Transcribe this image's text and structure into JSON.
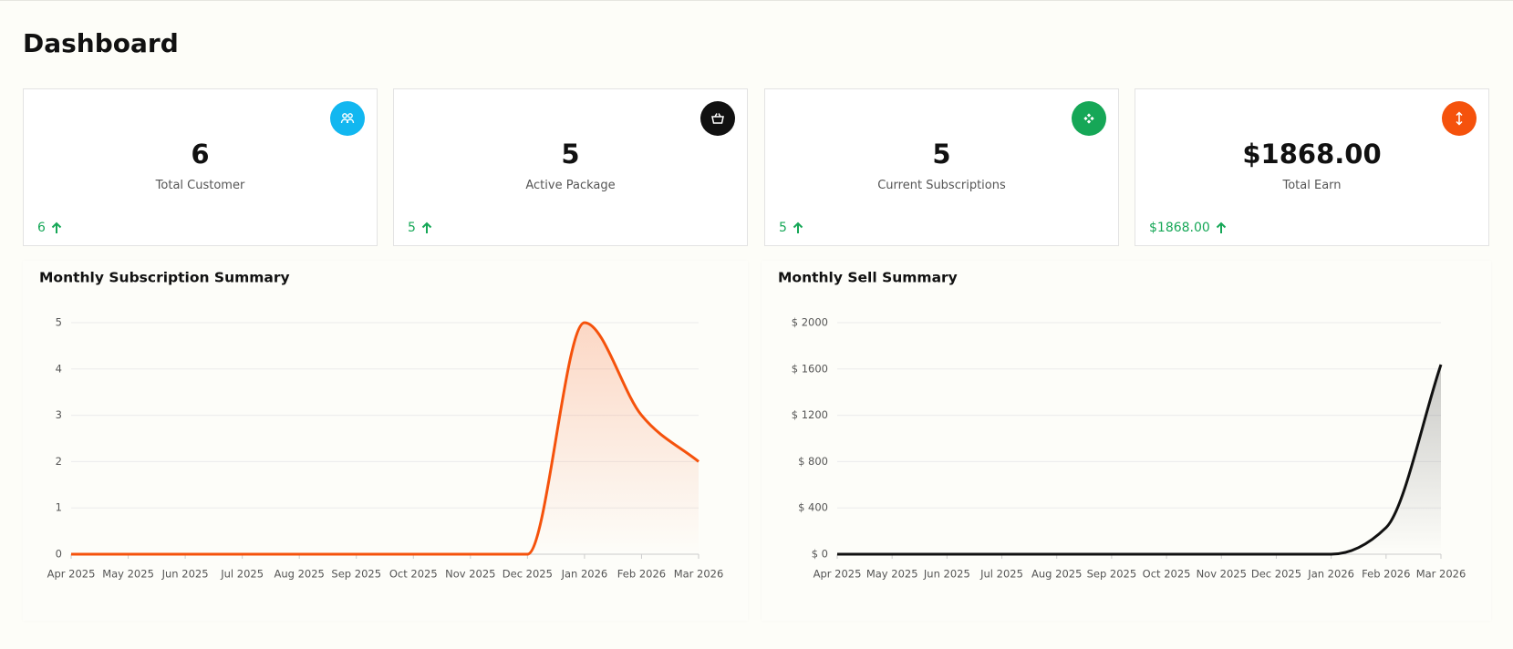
{
  "header": {
    "title": "Dashboard"
  },
  "cards": [
    {
      "value": "6",
      "label": "Total Customer",
      "change": "6",
      "icon_color": "#12b7f0"
    },
    {
      "value": "5",
      "label": "Active Package",
      "change": "5",
      "icon_color": "#111111"
    },
    {
      "value": "5",
      "label": "Current Subscriptions",
      "change": "5",
      "icon_color": "#16a757"
    },
    {
      "value": "$1868.00",
      "label": "Total Earn",
      "change": "$1868.00",
      "icon_color": "#f5520c"
    }
  ],
  "charts": [
    {
      "type": "line",
      "title": "Monthly Subscription Summary",
      "categories": [
        "Apr 2025",
        "May 2025",
        "Jun 2025",
        "Jul 2025",
        "Aug 2025",
        "Sep 2025",
        "Oct 2025",
        "Nov 2025",
        "Dec 2025",
        "Jan 2026",
        "Feb 2026",
        "Mar 2026"
      ],
      "values": [
        0,
        0,
        0,
        0,
        0,
        0,
        0,
        0,
        0,
        5,
        3,
        2
      ],
      "color": "#f5520c",
      "ylim": [
        0,
        5
      ],
      "yticks": [
        0,
        1,
        2,
        3,
        4,
        5
      ],
      "grid": true
    },
    {
      "type": "line",
      "title": "Monthly Sell Summary",
      "categories": [
        "Apr 2025",
        "May 2025",
        "Jun 2025",
        "Jul 2025",
        "Aug 2025",
        "Sep 2025",
        "Oct 2025",
        "Nov 2025",
        "Dec 2025",
        "Jan 2026",
        "Feb 2026",
        "Mar 2026"
      ],
      "values": [
        0,
        0,
        0,
        0,
        0,
        0,
        0,
        0,
        0,
        0,
        230,
        1638
      ],
      "color": "#111111",
      "ylim": [
        0,
        2000
      ],
      "yticks": [
        {
          "value": 0,
          "label": "$ 0"
        },
        {
          "value": 400,
          "label": "$ 400"
        },
        {
          "value": 800,
          "label": "$ 800"
        },
        {
          "value": 1200,
          "label": "$ 1200"
        },
        {
          "value": 1600,
          "label": "$ 1600"
        },
        {
          "value": 2000,
          "label": "$ 2000"
        }
      ],
      "grid": true
    }
  ]
}
